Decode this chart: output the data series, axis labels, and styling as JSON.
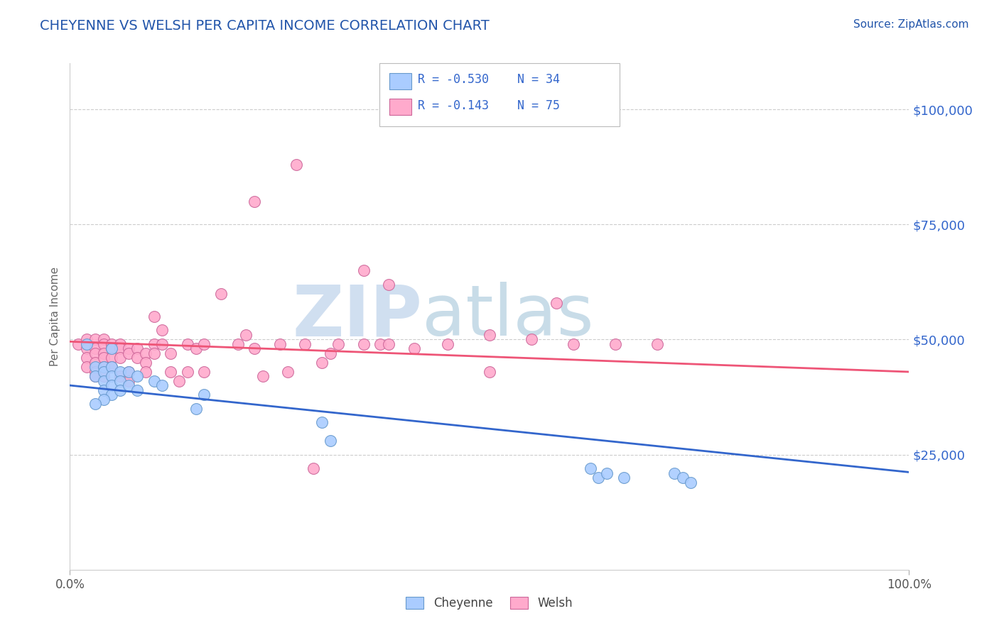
{
  "title": "CHEYENNE VS WELSH PER CAPITA INCOME CORRELATION CHART",
  "source": "Source: ZipAtlas.com",
  "ylabel": "Per Capita Income",
  "title_color": "#2255aa",
  "source_color": "#2255aa",
  "axis_label_color": "#666666",
  "background_color": "#ffffff",
  "plot_bg_color": "#ffffff",
  "grid_color": "#cccccc",
  "xlim": [
    0.0,
    1.0
  ],
  "ylim": [
    0,
    110000
  ],
  "yticks": [
    0,
    25000,
    50000,
    75000,
    100000
  ],
  "ytick_labels": [
    "",
    "$25,000",
    "$50,000",
    "$75,000",
    "$100,000"
  ],
  "xtick_labels": [
    "0.0%",
    "100.0%"
  ],
  "cheyenne_color": "#aaccff",
  "cheyenne_edge": "#6699cc",
  "welsh_color": "#ffaacc",
  "welsh_edge": "#cc6699",
  "cheyenne_line_color": "#3366cc",
  "welsh_line_color": "#ee5577",
  "legend_text_color": "#3366cc",
  "legend_r_cheyenne": "-0.530",
  "legend_n_cheyenne": "34",
  "legend_r_welsh": "-0.143",
  "legend_n_welsh": "75",
  "watermark_zip": "ZIP",
  "watermark_atlas": "atlas",
  "watermark_color_zip": "#d0dff0",
  "watermark_color_atlas": "#c8dce8",
  "cheyenne_x": [
    0.02,
    0.03,
    0.03,
    0.04,
    0.04,
    0.04,
    0.04,
    0.05,
    0.05,
    0.05,
    0.05,
    0.06,
    0.06,
    0.06,
    0.07,
    0.07,
    0.08,
    0.08,
    0.1,
    0.11,
    0.15,
    0.3,
    0.31,
    0.62,
    0.63,
    0.64,
    0.66,
    0.72,
    0.73,
    0.74,
    0.05,
    0.04,
    0.03,
    0.16
  ],
  "cheyenne_y": [
    49000,
    44000,
    42000,
    44000,
    43000,
    41000,
    39000,
    44000,
    42000,
    40000,
    38000,
    43000,
    41000,
    39000,
    43000,
    40000,
    42000,
    39000,
    41000,
    40000,
    35000,
    32000,
    28000,
    22000,
    20000,
    21000,
    20000,
    21000,
    20000,
    19000,
    48000,
    37000,
    36000,
    38000
  ],
  "welsh_x": [
    0.01,
    0.02,
    0.02,
    0.02,
    0.02,
    0.03,
    0.03,
    0.03,
    0.03,
    0.03,
    0.03,
    0.04,
    0.04,
    0.04,
    0.04,
    0.04,
    0.04,
    0.05,
    0.05,
    0.05,
    0.05,
    0.06,
    0.06,
    0.06,
    0.06,
    0.07,
    0.07,
    0.07,
    0.07,
    0.08,
    0.08,
    0.09,
    0.09,
    0.09,
    0.1,
    0.1,
    0.1,
    0.11,
    0.11,
    0.12,
    0.12,
    0.13,
    0.14,
    0.14,
    0.15,
    0.16,
    0.16,
    0.18,
    0.2,
    0.21,
    0.22,
    0.23,
    0.25,
    0.26,
    0.28,
    0.29,
    0.3,
    0.31,
    0.32,
    0.35,
    0.37,
    0.38,
    0.41,
    0.45,
    0.5,
    0.55,
    0.58,
    0.6,
    0.65,
    0.7,
    0.22,
    0.27,
    0.35,
    0.38,
    0.5
  ],
  "welsh_y": [
    49000,
    50000,
    48000,
    46000,
    44000,
    50000,
    48000,
    47000,
    45000,
    43000,
    42000,
    50000,
    49000,
    47000,
    46000,
    44000,
    42000,
    49000,
    48000,
    46000,
    44000,
    49000,
    48000,
    46000,
    42000,
    48000,
    47000,
    43000,
    41000,
    48000,
    46000,
    47000,
    45000,
    43000,
    55000,
    49000,
    47000,
    52000,
    49000,
    47000,
    43000,
    41000,
    49000,
    43000,
    48000,
    49000,
    43000,
    60000,
    49000,
    51000,
    48000,
    42000,
    49000,
    43000,
    49000,
    22000,
    45000,
    47000,
    49000,
    49000,
    49000,
    49000,
    48000,
    49000,
    43000,
    50000,
    58000,
    49000,
    49000,
    49000,
    80000,
    88000,
    65000,
    62000,
    51000
  ]
}
